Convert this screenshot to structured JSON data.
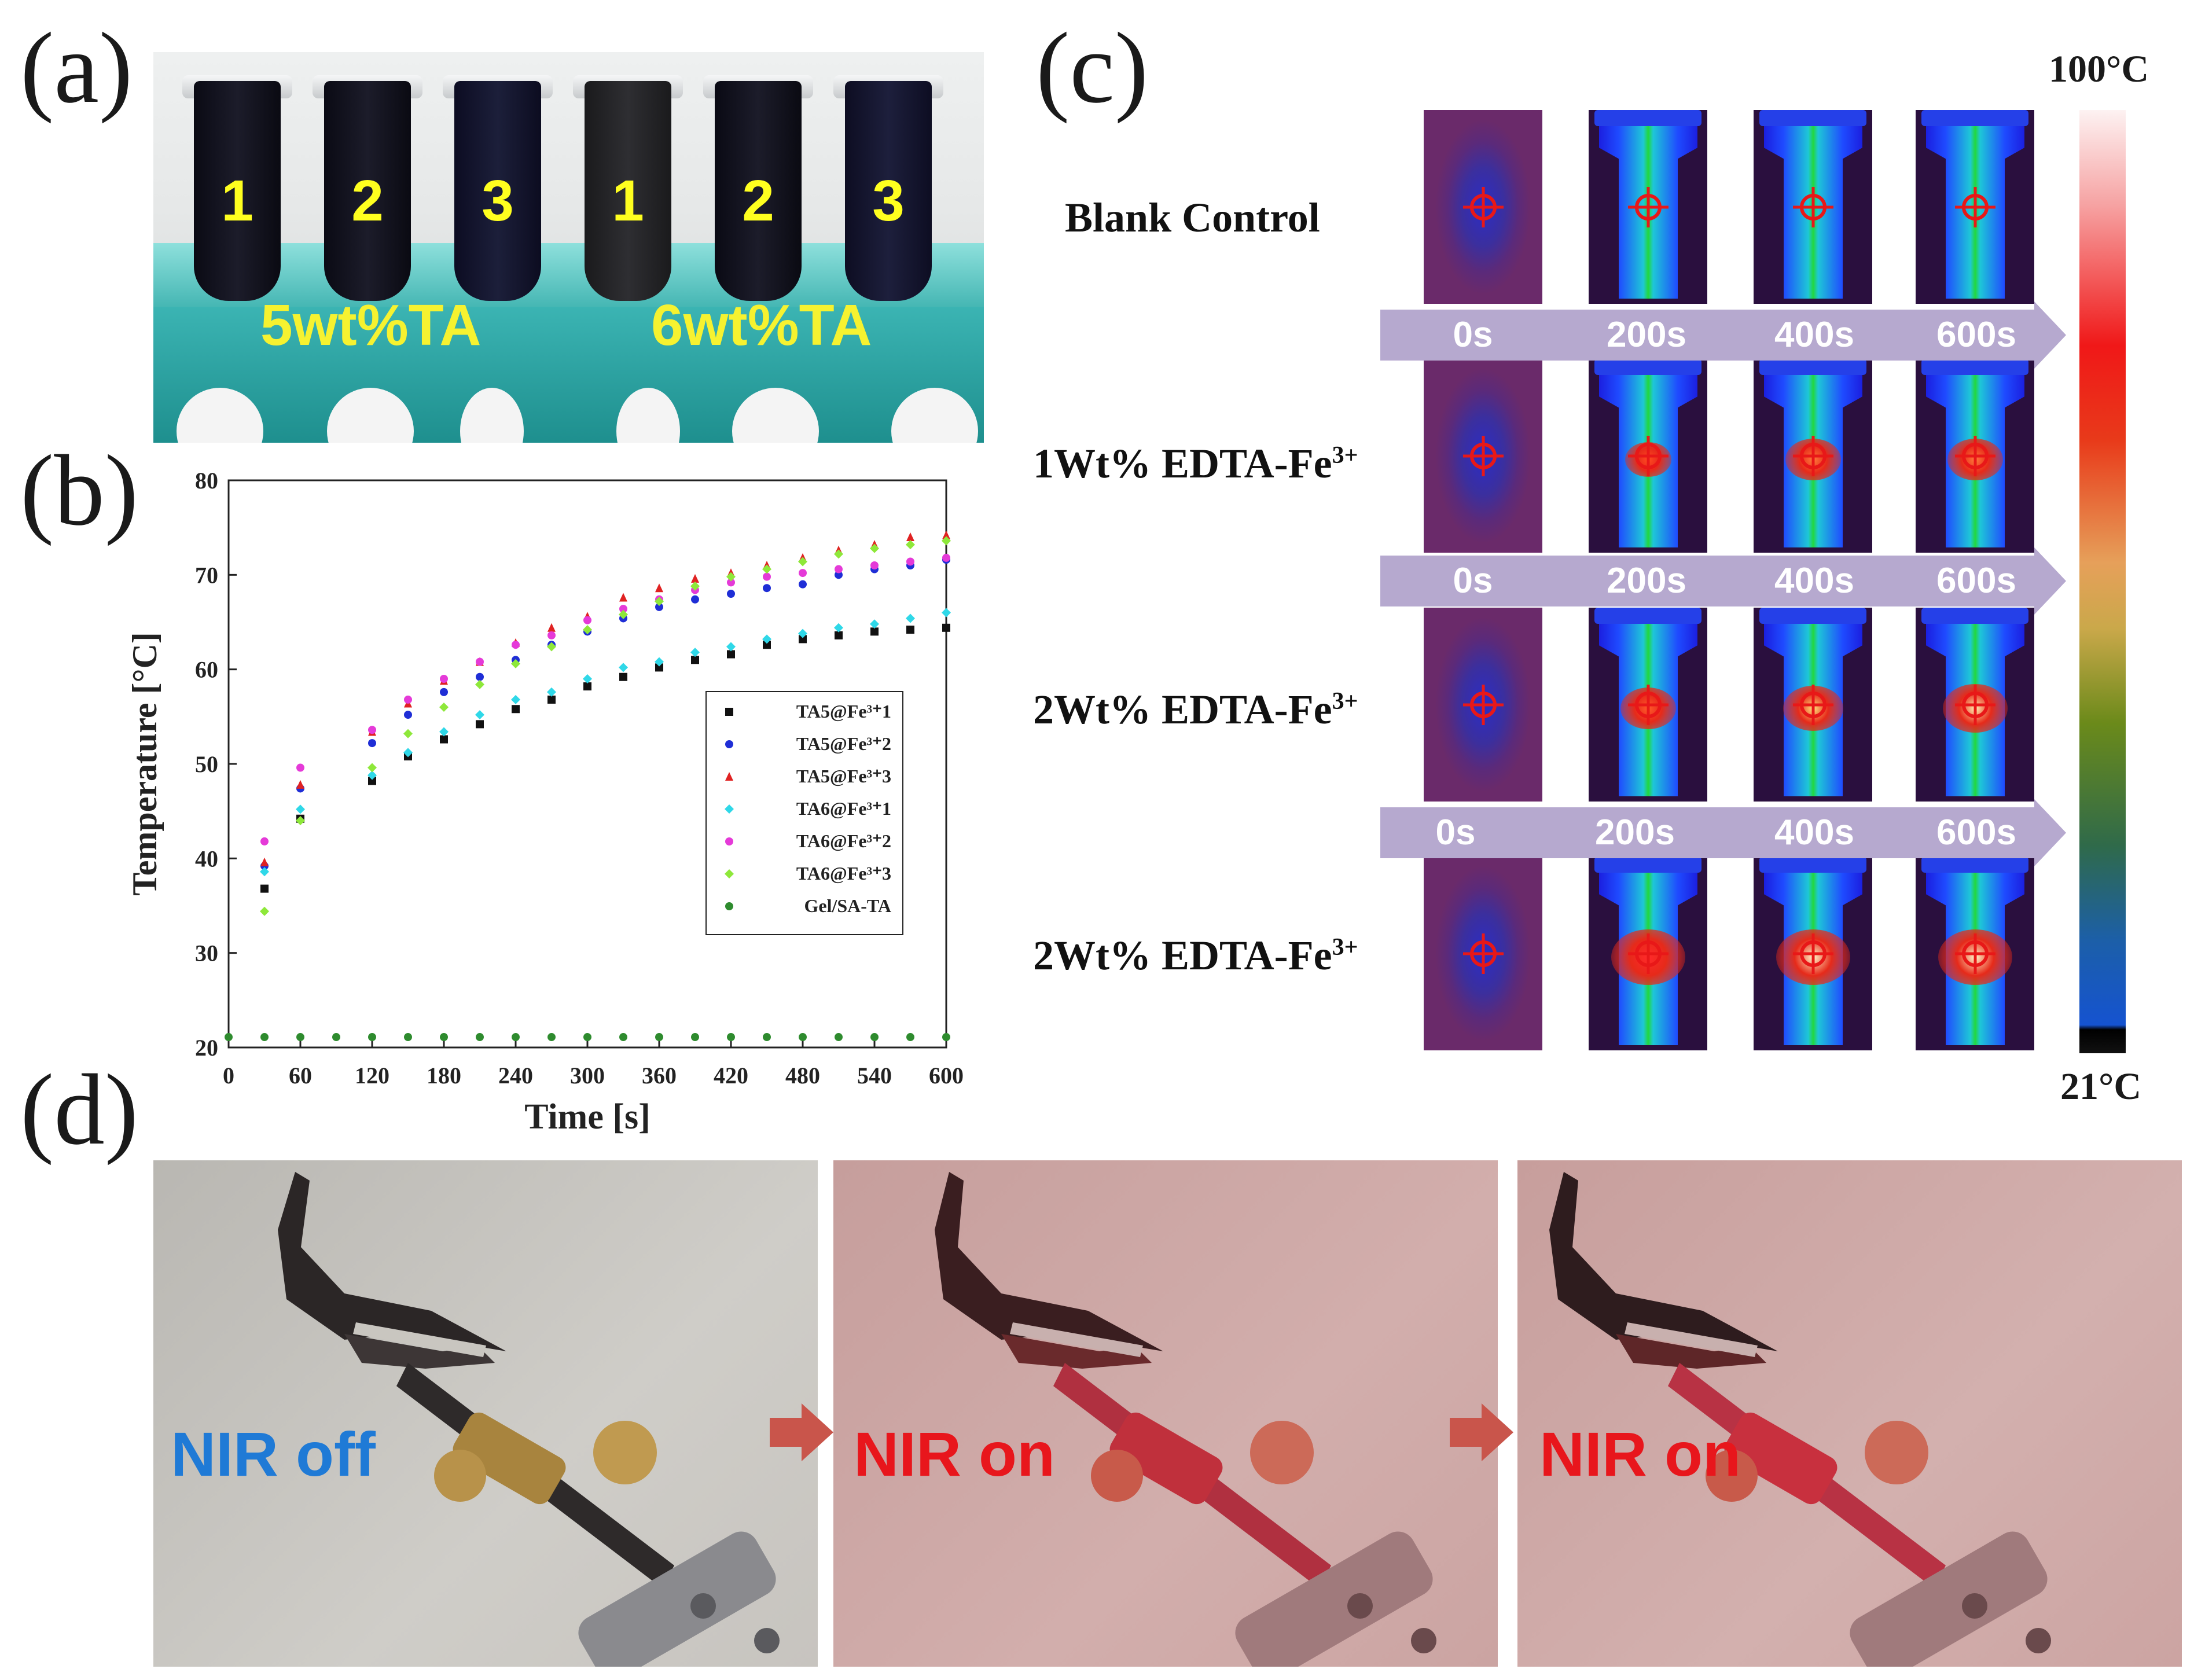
{
  "panels": {
    "a": {
      "label": "(a)",
      "tube_numbers": [
        "1",
        "2",
        "3",
        "1",
        "2",
        "3"
      ],
      "group_labels": [
        "5wt%TA",
        "6wt%TA"
      ]
    },
    "b": {
      "label": "(b)"
    },
    "c": {
      "label": "(c)",
      "rows": [
        {
          "label_main": "Blank Control",
          "label_sup": ""
        },
        {
          "label_main": "1Wt% EDTA-Fe",
          "label_sup": "3+"
        },
        {
          "label_main": "2Wt% EDTA-Fe",
          "label_sup": "3+"
        },
        {
          "label_main": "2Wt% EDTA-Fe",
          "label_sup": "3+"
        }
      ],
      "time_labels": [
        "0s",
        "200s",
        "400s",
        "600s"
      ],
      "colorbar": {
        "max_label": "100°C",
        "min_label": "21°C"
      }
    },
    "d": {
      "label": "(d)",
      "photo_labels": [
        "NIR off",
        "NIR on",
        "NIR on"
      ],
      "colors": {
        "off": "#1f7ad6",
        "on": "#e8161c",
        "arrow": "#c9554b"
      }
    }
  },
  "chart_data": {
    "type": "scatter",
    "xlabel": "Time [s]",
    "ylabel": "Temperature [°C]",
    "xlim": [
      0,
      600
    ],
    "ylim": [
      20,
      80
    ],
    "xticks": [
      0,
      60,
      120,
      180,
      240,
      300,
      360,
      420,
      480,
      540,
      600
    ],
    "yticks": [
      20,
      30,
      40,
      50,
      60,
      70,
      80
    ],
    "legend_position": "right",
    "series": [
      {
        "name": "TA5@Fe³⁺1",
        "color": "#111111",
        "marker": "square",
        "x": [
          30,
          60,
          120,
          150,
          180,
          210,
          240,
          270,
          300,
          330,
          360,
          390,
          420,
          450,
          480,
          510,
          540,
          570,
          600
        ],
        "y": [
          36.8,
          44.2,
          48.2,
          50.8,
          52.6,
          54.2,
          55.8,
          56.8,
          58.2,
          59.2,
          60.2,
          61.0,
          61.6,
          62.6,
          63.2,
          63.6,
          64.0,
          64.2,
          64.4
        ]
      },
      {
        "name": "TA5@Fe³⁺2",
        "color": "#1f2ed6",
        "marker": "circle",
        "x": [
          30,
          60,
          120,
          150,
          180,
          210,
          240,
          270,
          300,
          330,
          360,
          390,
          420,
          450,
          480,
          510,
          540,
          570,
          600
        ],
        "y": [
          39.2,
          47.4,
          52.2,
          55.2,
          57.6,
          59.2,
          61.0,
          62.6,
          64.0,
          65.4,
          66.6,
          67.4,
          68.0,
          68.6,
          69.0,
          70.0,
          70.6,
          71.0,
          71.6
        ]
      },
      {
        "name": "TA5@Fe³⁺3",
        "color": "#e02222",
        "marker": "triangle",
        "x": [
          30,
          60,
          120,
          150,
          180,
          210,
          240,
          270,
          300,
          330,
          360,
          390,
          420,
          450,
          480,
          510,
          540,
          570,
          600
        ],
        "y": [
          39.6,
          47.8,
          53.4,
          56.4,
          58.8,
          60.8,
          62.8,
          64.4,
          65.6,
          67.6,
          68.6,
          69.6,
          70.2,
          71.0,
          71.8,
          72.6,
          73.2,
          74.0,
          74.2
        ]
      },
      {
        "name": "TA6@Fe³⁺1",
        "color": "#2fd8e8",
        "marker": "diamond",
        "x": [
          30,
          60,
          120,
          150,
          180,
          210,
          240,
          270,
          300,
          330,
          360,
          390,
          420,
          450,
          480,
          510,
          540,
          570,
          600
        ],
        "y": [
          38.6,
          45.2,
          48.8,
          51.2,
          53.4,
          55.2,
          56.8,
          57.6,
          59.0,
          60.2,
          60.8,
          61.8,
          62.4,
          63.2,
          63.8,
          64.4,
          64.8,
          65.4,
          66.0
        ]
      },
      {
        "name": "TA6@Fe³⁺2",
        "color": "#e53ad8",
        "marker": "circle",
        "x": [
          30,
          60,
          120,
          150,
          180,
          210,
          240,
          270,
          300,
          330,
          360,
          390,
          420,
          450,
          480,
          510,
          540,
          570,
          600
        ],
        "y": [
          41.8,
          49.6,
          53.6,
          56.8,
          59.0,
          60.8,
          62.6,
          63.6,
          65.2,
          66.4,
          67.4,
          68.4,
          69.2,
          69.8,
          70.2,
          70.6,
          71.0,
          71.4,
          71.8
        ]
      },
      {
        "name": "TA6@Fe³⁺3",
        "color": "#8ee83a",
        "marker": "diamond",
        "x": [
          30,
          60,
          120,
          150,
          180,
          210,
          240,
          270,
          300,
          330,
          360,
          390,
          420,
          450,
          480,
          510,
          540,
          570,
          600
        ],
        "y": [
          34.4,
          44.0,
          49.6,
          53.2,
          56.0,
          58.4,
          60.6,
          62.4,
          64.2,
          65.8,
          67.2,
          68.8,
          69.8,
          70.6,
          71.4,
          72.2,
          72.8,
          73.2,
          73.6
        ]
      },
      {
        "name": "Gel/SA-TA",
        "color": "#2e8b2e",
        "marker": "circle",
        "x": [
          0,
          30,
          60,
          90,
          120,
          150,
          180,
          210,
          240,
          270,
          300,
          330,
          360,
          390,
          420,
          450,
          480,
          510,
          540,
          570,
          600
        ],
        "y": [
          21.1,
          21.1,
          21.1,
          21.1,
          21.1,
          21.1,
          21.1,
          21.1,
          21.1,
          21.1,
          21.1,
          21.1,
          21.1,
          21.1,
          21.1,
          21.1,
          21.1,
          21.1,
          21.1,
          21.1,
          21.1
        ]
      }
    ]
  }
}
